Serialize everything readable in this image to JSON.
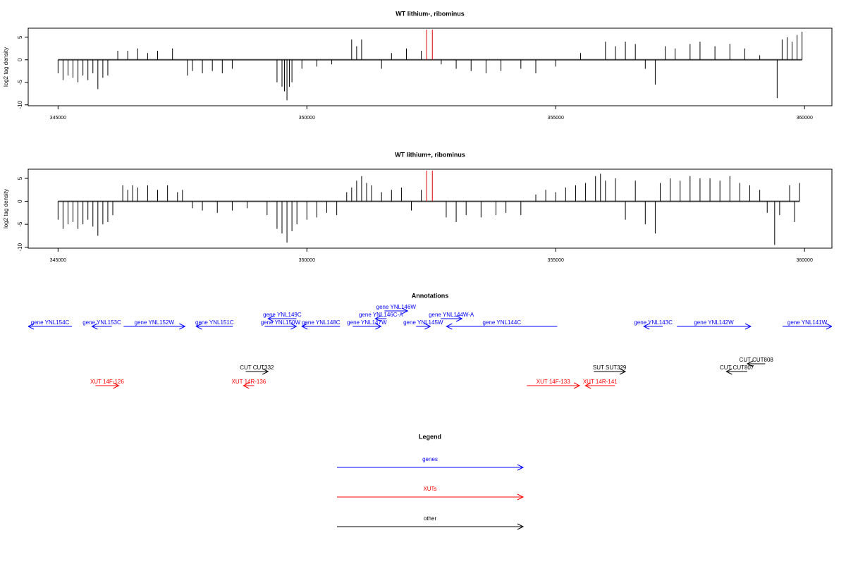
{
  "chart_data": [
    {
      "type": "bar",
      "title": "WT lithium-, ribominus",
      "ylabel": "log2 tag density",
      "color": "#000000",
      "x": [
        345000,
        345100,
        345200,
        345300,
        345400,
        345500,
        345600,
        345700,
        345800,
        345900,
        346000,
        346200,
        346400,
        346600,
        346800,
        347000,
        347300,
        347600,
        347700,
        347900,
        348100,
        348300,
        348500,
        349400,
        349500,
        349550,
        349600,
        349650,
        349700,
        349900,
        350200,
        350500,
        350900,
        351000,
        351100,
        351500,
        351700,
        352000,
        352300,
        352700,
        353000,
        353300,
        353600,
        353900,
        354300,
        354600,
        355000,
        355500,
        356000,
        356200,
        356400,
        356600,
        356800,
        357000,
        357200,
        357400,
        357700,
        357900,
        358200,
        358500,
        358800,
        359100,
        359450,
        359550,
        359650,
        359750,
        359850,
        359950
      ],
      "values": [
        -3,
        -4.5,
        -3.5,
        -4,
        -5,
        -3.5,
        -4.5,
        -3,
        -6.5,
        -4,
        -3.5,
        2,
        2,
        2.5,
        1.5,
        2,
        2.5,
        -3.5,
        -2.5,
        -3,
        -2.5,
        -3,
        -2,
        -5,
        -6,
        -7,
        -9,
        -6,
        -5,
        -2,
        -1.5,
        -1,
        4.5,
        3,
        4.5,
        -2,
        1.5,
        2.5,
        2,
        -1,
        -2,
        -2.5,
        -3,
        -2.5,
        -2,
        -3,
        -1.5,
        1.5,
        4,
        3,
        4,
        3.5,
        -2,
        -5.5,
        3,
        2.5,
        3.5,
        4,
        3,
        3.5,
        2.5,
        1,
        -8.5,
        4.5,
        5,
        4,
        5.5,
        6.2
      ],
      "markers": {
        "x": [
          352408,
          352521
        ],
        "values": [
          6.7,
          6.7
        ],
        "color": "#e00000"
      },
      "xlim": [
        344400,
        360550
      ],
      "ylim": [
        -10.2,
        7
      ],
      "xticks": [
        345000,
        350000,
        355000,
        360000
      ],
      "yticks": [
        -10,
        -5,
        0,
        5
      ]
    },
    {
      "type": "bar",
      "title": "WT lithium+, ribominus",
      "ylabel": "log2 tag density",
      "color": "#000000",
      "x": [
        345000,
        345100,
        345200,
        345300,
        345400,
        345500,
        345600,
        345700,
        345800,
        345900,
        346000,
        346100,
        346300,
        346400,
        346500,
        346600,
        346800,
        347000,
        347200,
        347400,
        347500,
        347700,
        347900,
        348200,
        348500,
        348800,
        349200,
        349400,
        349500,
        349600,
        349700,
        349800,
        350000,
        350200,
        350400,
        350600,
        350800,
        350900,
        351000,
        351100,
        351200,
        351300,
        351500,
        351700,
        351900,
        352100,
        352300,
        352800,
        353000,
        353200,
        353500,
        353800,
        354000,
        354300,
        354600,
        354800,
        355000,
        355200,
        355400,
        355600,
        355800,
        355900,
        356000,
        356200,
        356400,
        356600,
        356800,
        357000,
        357100,
        357300,
        357500,
        357700,
        357900,
        358100,
        358300,
        358500,
        358700,
        358900,
        359100,
        359250,
        359400,
        359500,
        359700,
        359800,
        359900
      ],
      "values": [
        -4,
        -6,
        -5,
        -4.5,
        -6,
        -5,
        -4,
        -5.5,
        -7.5,
        -5,
        -4.5,
        -3,
        3.5,
        2.5,
        3.5,
        3,
        3.5,
        2.5,
        3.5,
        2,
        2.5,
        -1.5,
        -2,
        -2.5,
        -2,
        -1.5,
        -3,
        -6,
        -7,
        -9,
        -6.5,
        -5,
        -4,
        -3.5,
        -2.5,
        -3,
        2,
        3,
        4.5,
        5.5,
        4,
        3.5,
        2,
        2.5,
        3,
        -2,
        2.5,
        -3.5,
        -4.5,
        -3,
        -3.5,
        -3,
        -2.5,
        -3,
        1.5,
        2.5,
        2,
        3,
        3.5,
        4,
        5.5,
        6,
        4.5,
        5,
        -4,
        4.5,
        -5,
        -7,
        4,
        5,
        4.5,
        5.5,
        5,
        5,
        4.5,
        5.5,
        4,
        3.5,
        2.5,
        -2.5,
        -9.5,
        -3,
        3.5,
        -4.5,
        4
      ],
      "markers": {
        "x": [
          352408,
          352521
        ],
        "values": [
          6.7,
          6.7
        ],
        "color": "#e00000"
      },
      "xlim": [
        344400,
        360550
      ],
      "ylim": [
        -10.2,
        7
      ],
      "xticks": [
        345000,
        350000,
        355000,
        360000
      ],
      "yticks": [
        -10,
        -5,
        0,
        5
      ]
    },
    {
      "type": "annotation",
      "title": "Annotations",
      "legend_title": "Legend",
      "xlim": [
        344400,
        360550
      ],
      "groups": [
        {
          "name": "genes",
          "color": "#0000ff",
          "features": [
            {
              "label": "gene YNL154C",
              "start": 345280,
              "end": 344400
            },
            {
              "label": "gene YNL153C",
              "start": 346080,
              "end": 345680
            },
            {
              "label": "gene YNL152W",
              "start": 346317,
              "end": 347550
            },
            {
              "label": "gene YNL151C",
              "start": 348513,
              "end": 347776
            },
            {
              "label": "gene YNL150W",
              "start": 349150,
              "end": 349790
            },
            {
              "label": "gene YNL149C",
              "start": 349790,
              "end": 349220
            },
            {
              "label": "gene YNL148C",
              "start": 350666,
              "end": 349900
            },
            {
              "label": "gene YNL147W",
              "start": 350920,
              "end": 351490
            },
            {
              "label": "gene YNL146C-A",
              "start": 351600,
              "end": 351374
            },
            {
              "label": "gene YNL146W",
              "start": 351560,
              "end": 352025
            },
            {
              "label": "gene YNL145W",
              "start": 352195,
              "end": 352480
            },
            {
              "label": "gene YNL144W-A",
              "start": 352690,
              "end": 353115
            },
            {
              "label": "gene YNL144C",
              "start": 355030,
              "end": 352805
            },
            {
              "label": "gene YNL143C",
              "start": 357150,
              "end": 356770
            },
            {
              "label": "gene YNL142W",
              "start": 357435,
              "end": 358920
            },
            {
              "label": "gene YNL141W",
              "start": 359560,
              "end": 360550
            }
          ]
        },
        {
          "name": "XUTs",
          "color": "#ff0000",
          "features": [
            {
              "label": "XUT 14F-126",
              "start": 345750,
              "end": 346220
            },
            {
              "label": "XUT 14R-136",
              "start": 348940,
              "end": 348725
            },
            {
              "label": "XUT 14F-133",
              "start": 354420,
              "end": 355480
            },
            {
              "label": "XUT 14R-141",
              "start": 356190,
              "end": 355595
            }
          ]
        },
        {
          "name": "other",
          "color": "#000000",
          "features": [
            {
              "label": "CUT CUT332",
              "start": 348770,
              "end": 349220
            },
            {
              "label": "SUT SUT329",
              "start": 355765,
              "end": 356400
            },
            {
              "label": "CUT CUT807",
              "start": 358850,
              "end": 358430
            },
            {
              "label": "CUT CUT808",
              "start": 359210,
              "end": 358850
            }
          ]
        }
      ]
    }
  ]
}
